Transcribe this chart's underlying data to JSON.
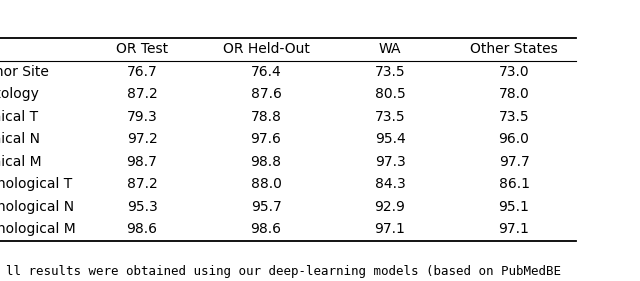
{
  "columns": [
    "OR Test",
    "OR Held-Out",
    "WA",
    "Other States"
  ],
  "rows": [
    [
      "Tumor Site",
      "76.7",
      "76.4",
      "73.5",
      "73.0"
    ],
    [
      "Histology",
      "87.2",
      "87.6",
      "80.5",
      "78.0"
    ],
    [
      "Clinical T",
      "79.3",
      "78.8",
      "73.5",
      "73.5"
    ],
    [
      "Clinical N",
      "97.2",
      "97.6",
      "95.4",
      "96.0"
    ],
    [
      "Clinical M",
      "98.7",
      "98.8",
      "97.3",
      "97.7"
    ],
    [
      "Pathological T",
      "87.2",
      "88.0",
      "84.3",
      "86.1"
    ],
    [
      "Pathological N",
      "95.3",
      "95.7",
      "92.9",
      "95.1"
    ],
    [
      "Pathological M",
      "98.6",
      "98.6",
      "97.1",
      "97.1"
    ]
  ],
  "caption": "ll results were obtained using our deep-learning models (based on PubMedBE",
  "bg_color": "#ffffff",
  "font_size": 10.0,
  "caption_font_size": 9.0
}
